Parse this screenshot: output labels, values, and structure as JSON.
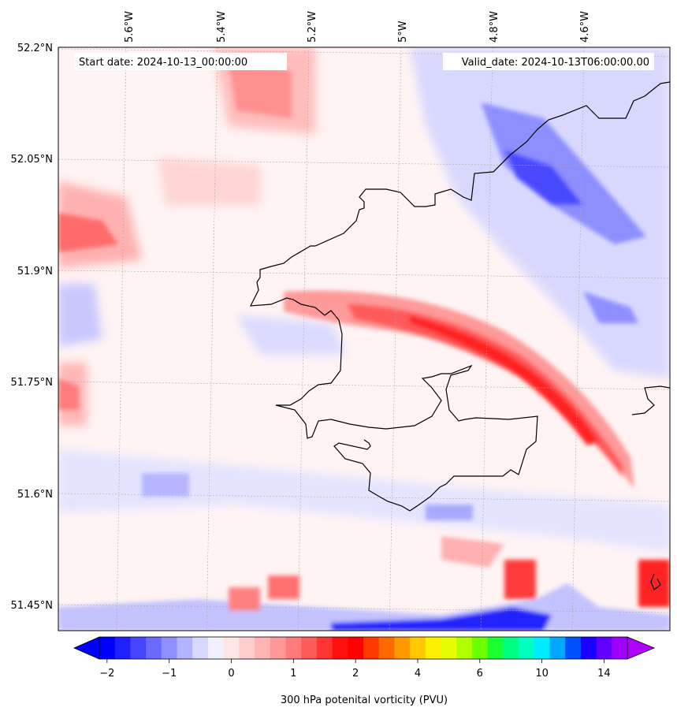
{
  "map": {
    "start_label": "Start date: 2024-10-13_00:00:00",
    "valid_label": "Valid_date: 2024-10-13T06:00:00.00",
    "lon_labels": [
      "5.6°W",
      "5.4°W",
      "5.2°W",
      "5°W",
      "4.8°W",
      "4.6°W"
    ],
    "lat_labels": [
      "52.2°N",
      "52.05°N",
      "51.9°N",
      "51.75°N",
      "51.6°N",
      "51.45°N"
    ],
    "field": "300 hPa potential vorticity",
    "coastline_color": "#000000"
  },
  "colorbar": {
    "title": "300 hPa potenital vorticity (PVU)",
    "tick_labels": [
      "−2",
      "−1",
      "0",
      "1",
      "2",
      "4",
      "6",
      "10",
      "14"
    ],
    "colors": [
      "#0000ff",
      "#2020ff",
      "#4545ff",
      "#6a6aff",
      "#8f8fff",
      "#b3b3ff",
      "#d7d7ff",
      "#f0f0ff",
      "#ffe6e6",
      "#ffcdcd",
      "#ffb3b3",
      "#ff9999",
      "#ff7a7a",
      "#ff5a5a",
      "#ff3434",
      "#ff1010",
      "#ff0000",
      "#ff3a00",
      "#ff6a00",
      "#ff9900",
      "#ffc800",
      "#fff000",
      "#e6ff00",
      "#b0ff00",
      "#6cff00",
      "#1aff30",
      "#00ff80",
      "#00ffc0",
      "#00ebff",
      "#00a8ff",
      "#0050ff",
      "#1a00ff",
      "#6000ff",
      "#a000ff"
    ],
    "under_color": "#0000ff",
    "over_color": "#b000ff"
  }
}
